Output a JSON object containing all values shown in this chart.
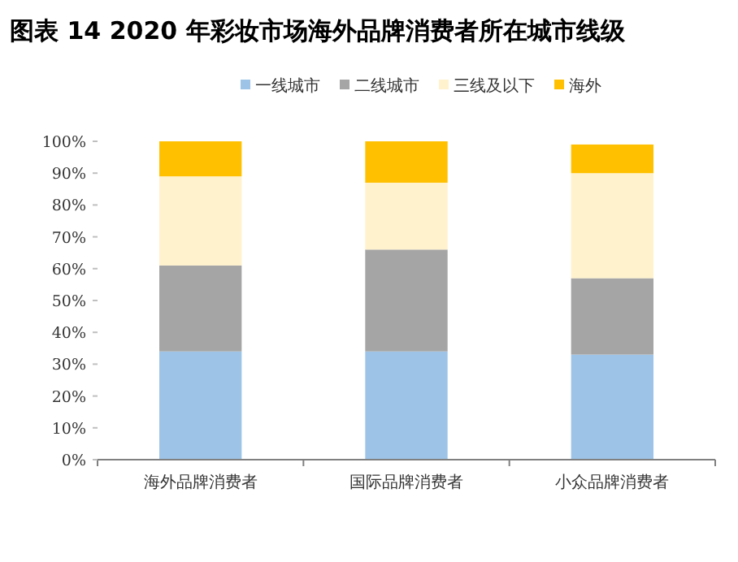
{
  "chart_data": {
    "type": "bar",
    "stacked": true,
    "title": "图表 14 2020 年彩妆市场海外品牌消费者所在城市线级",
    "categories": [
      "海外品牌消费者",
      "国际品牌消费者",
      "小众品牌消费者"
    ],
    "series": [
      {
        "name": "一线城市",
        "color": "#9dc3e6",
        "values": [
          34,
          34,
          33
        ]
      },
      {
        "name": "二线城市",
        "color": "#a5a5a5",
        "values": [
          27,
          32,
          24
        ]
      },
      {
        "name": "三线及以下",
        "color": "#fff2cc",
        "values": [
          28,
          21,
          33
        ]
      },
      {
        "name": "海外",
        "color": "#ffc000",
        "values": [
          11,
          13,
          9
        ]
      }
    ],
    "ylim": [
      0,
      100
    ],
    "yticks": [
      {
        "value": 0,
        "label": "0%"
      },
      {
        "value": 10,
        "label": "10%"
      },
      {
        "value": 20,
        "label": "20%"
      },
      {
        "value": 30,
        "label": "30%"
      },
      {
        "value": 40,
        "label": "40%"
      },
      {
        "value": 50,
        "label": "50%"
      },
      {
        "value": 60,
        "label": "60%"
      },
      {
        "value": 70,
        "label": "70%"
      },
      {
        "value": 80,
        "label": "80%"
      },
      {
        "value": 90,
        "label": "90%"
      },
      {
        "value": 100,
        "label": "100%"
      }
    ],
    "legend": "top",
    "grid": false
  }
}
